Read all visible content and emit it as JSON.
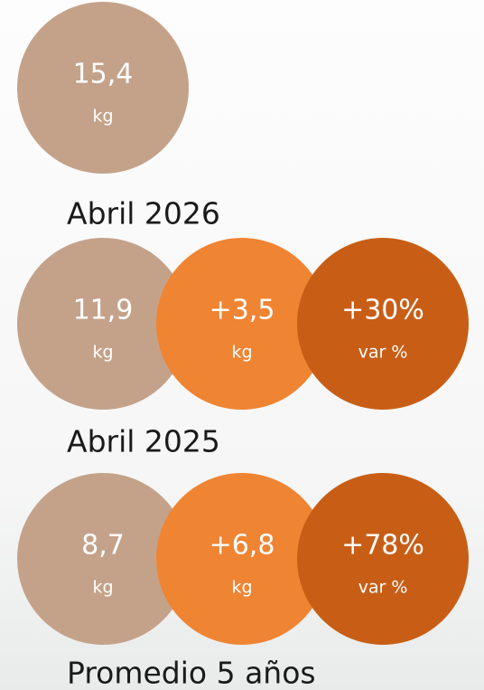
{
  "sections": [
    {
      "circles": [
        {
          "value": "15,4",
          "unit": "kg"
        }
      ],
      "label": "Abril 2026"
    },
    {
      "circles": [
        {
          "value": "11,9",
          "unit": "kg"
        },
        {
          "value": "+3,5",
          "unit": "kg"
        },
        {
          "value": "+30%",
          "unit": "var %"
        }
      ],
      "label": "Abril 2025"
    },
    {
      "circles": [
        {
          "value": "8,7",
          "unit": "kg"
        },
        {
          "value": "+6,8",
          "unit": "kg"
        },
        {
          "value": "+78%",
          "unit": "var %"
        }
      ],
      "label": "Promedio 5 años"
    }
  ]
}
